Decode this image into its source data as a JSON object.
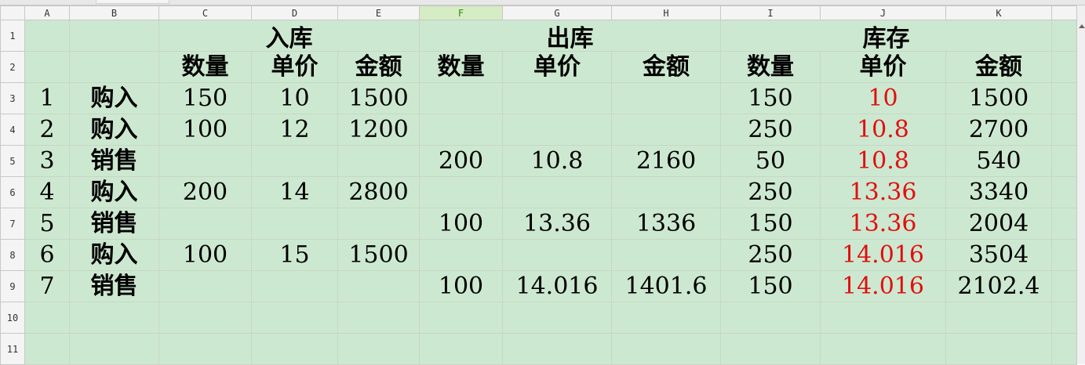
{
  "columns": [
    "A",
    "B",
    "C",
    "D",
    "E",
    "F",
    "G",
    "H",
    "I",
    "J",
    "K",
    ""
  ],
  "selected_column": "F",
  "row_numbers": [
    "1",
    "2",
    "3",
    "4",
    "5",
    "6",
    "7",
    "8",
    "9",
    "10",
    "11"
  ],
  "groups": [
    "入库",
    "出库",
    "库存"
  ],
  "subheaders": [
    "数量",
    "单价",
    "金额",
    "数量",
    "单价",
    "金额",
    "数量",
    "单价",
    "金额"
  ],
  "rows": [
    [
      "1",
      "购入",
      "150",
      "10",
      "1500",
      "",
      "",
      "",
      "150",
      "10",
      "1500"
    ],
    [
      "2",
      "购入",
      "100",
      "12",
      "1200",
      "",
      "",
      "",
      "250",
      "10.8",
      "2700"
    ],
    [
      "3",
      "销售",
      "",
      "",
      "",
      "200",
      "10.8",
      "2160",
      "50",
      "10.8",
      "540"
    ],
    [
      "4",
      "购入",
      "200",
      "14",
      "2800",
      "",
      "",
      "",
      "250",
      "13.36",
      "3340"
    ],
    [
      "5",
      "销售",
      "",
      "",
      "",
      "100",
      "13.36",
      "1336",
      "150",
      "13.36",
      "2004"
    ],
    [
      "6",
      "购入",
      "100",
      "15",
      "1500",
      "",
      "",
      "",
      "250",
      "14.016",
      "3504"
    ],
    [
      "7",
      "销售",
      "",
      "",
      "",
      "100",
      "14.016",
      "1401.6",
      "150",
      "14.016",
      "2102.4"
    ]
  ],
  "colors": {
    "cell_fill": "#cde8d0",
    "unit_cost_text": "#e01010",
    "selected_header": "#2a8a00"
  }
}
